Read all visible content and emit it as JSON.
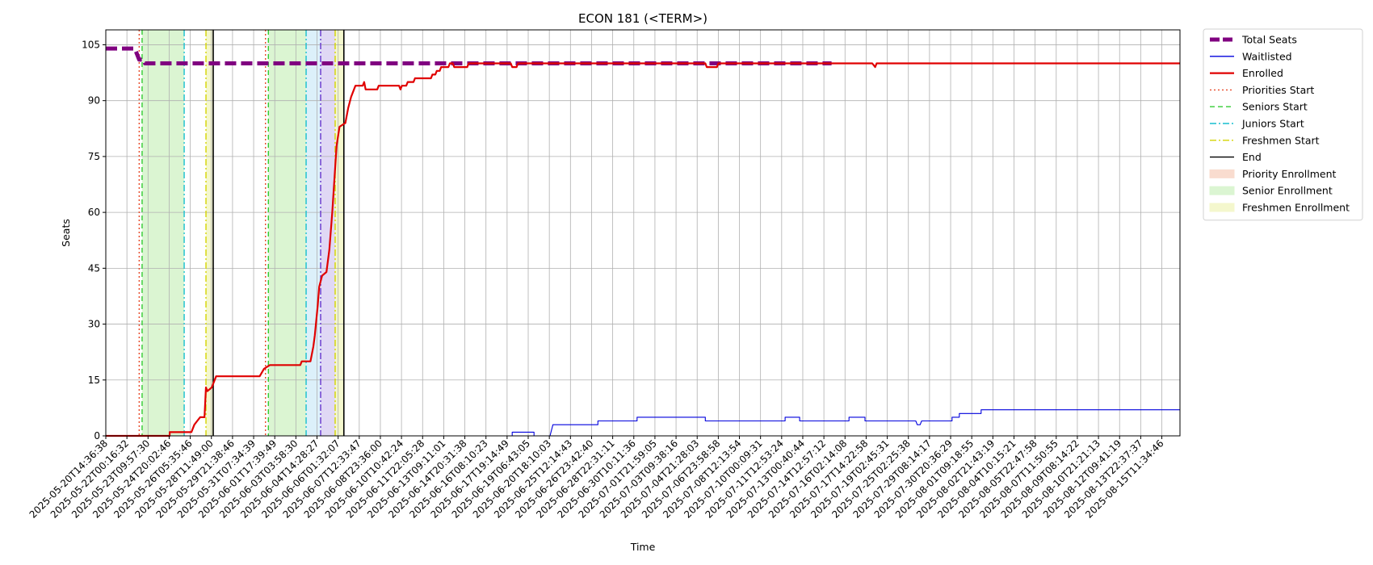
{
  "chart_data": {
    "type": "line",
    "title": "ECON 181 (<TERM>)",
    "xlabel": "Time",
    "ylabel": "Seats",
    "ylim": [
      0,
      109
    ],
    "yticks": [
      0,
      15,
      30,
      45,
      60,
      75,
      90,
      105
    ],
    "xlim": [
      "2025-05-20T14:36:38",
      "2025-08-16T10:00:00"
    ],
    "xticks": [
      "2025-05-20T14:36:38",
      "2025-05-22T00:16:32",
      "2025-05-23T09:57:30",
      "2025-05-24T20:02:46",
      "2025-05-26T05:35:46",
      "2025-05-28T11:49:00",
      "2025-05-29T21:38:46",
      "2025-05-31T07:34:39",
      "2025-06-01T17:39:49",
      "2025-06-03T03:58:30",
      "2025-06-04T14:28:27",
      "2025-06-06T01:32:07",
      "2025-06-07T12:33:47",
      "2025-06-08T23:36:00",
      "2025-06-10T10:42:24",
      "2025-06-11T22:05:28",
      "2025-06-13T09:11:01",
      "2025-06-14T20:31:38",
      "2025-06-16T08:10:23",
      "2025-06-17T19:14:49",
      "2025-06-19T06:43:05",
      "2025-06-20T18:10:03",
      "2025-06-25T12:14:43",
      "2025-06-26T23:42:40",
      "2025-06-28T22:31:11",
      "2025-06-30T10:11:36",
      "2025-07-01T21:59:05",
      "2025-07-03T09:38:16",
      "2025-07-04T21:28:03",
      "2025-07-06T23:58:58",
      "2025-07-08T12:13:54",
      "2025-07-10T00:09:31",
      "2025-07-11T12:53:24",
      "2025-07-13T00:40:44",
      "2025-07-14T12:57:12",
      "2025-07-16T02:14:08",
      "2025-07-17T14:22:58",
      "2025-07-19T02:45:31",
      "2025-07-25T02:25:38",
      "2025-07-29T08:14:17",
      "2025-07-30T20:36:29",
      "2025-08-01T09:18:55",
      "2025-08-02T21:43:19",
      "2025-08-04T10:15:21",
      "2025-08-05T22:47:58",
      "2025-08-07T11:50:55",
      "2025-08-09T08:14:22",
      "2025-08-10T21:21:13",
      "2025-08-12T09:41:19",
      "2025-08-13T22:37:37",
      "2025-08-15T11:34:46"
    ],
    "legend_position": "outside-right",
    "grid": true,
    "series": [
      {
        "name": "Total Seats",
        "color": "#800080",
        "style": "dashed",
        "points": [
          [
            0,
            104
          ],
          [
            2,
            104
          ],
          [
            2.3,
            101
          ],
          [
            2.6,
            101
          ],
          [
            2.7,
            100
          ],
          [
            50,
            100
          ]
        ]
      },
      {
        "name": "Waitlisted",
        "color": "#0000dd",
        "style": "solid",
        "points": [
          [
            0,
            0
          ],
          [
            28,
            0
          ],
          [
            28,
            1
          ],
          [
            29.5,
            1
          ],
          [
            29.5,
            0
          ],
          [
            30.6,
            0
          ],
          [
            30.8,
            3
          ],
          [
            33.9,
            3
          ],
          [
            33.9,
            4
          ],
          [
            36.6,
            4
          ],
          [
            36.6,
            5
          ],
          [
            41.3,
            5
          ],
          [
            41.3,
            4
          ],
          [
            46.8,
            4
          ],
          [
            46.8,
            5
          ],
          [
            47.8,
            5
          ],
          [
            47.8,
            4
          ],
          [
            51.2,
            4
          ],
          [
            51.2,
            5
          ],
          [
            52.3,
            5
          ],
          [
            52.3,
            4
          ],
          [
            55.8,
            4
          ],
          [
            55.9,
            3
          ],
          [
            56.1,
            3
          ],
          [
            56.2,
            4
          ],
          [
            58.3,
            4
          ],
          [
            58.3,
            5
          ],
          [
            58.8,
            5
          ],
          [
            58.8,
            6
          ],
          [
            60.3,
            6
          ],
          [
            60.3,
            7
          ],
          [
            74.0,
            7
          ]
        ]
      },
      {
        "name": "Enrolled",
        "color": "#e00000",
        "style": "solid",
        "points": [
          [
            0,
            0
          ],
          [
            4.4,
            0
          ],
          [
            4.4,
            1
          ],
          [
            5.9,
            1
          ],
          [
            6.0,
            2
          ],
          [
            6.1,
            3
          ],
          [
            6.3,
            4
          ],
          [
            6.5,
            5
          ],
          [
            6.8,
            5
          ],
          [
            6.9,
            13
          ],
          [
            7.0,
            12
          ],
          [
            7.3,
            13
          ],
          [
            7.5,
            15
          ],
          [
            7.6,
            16
          ],
          [
            10.6,
            16
          ],
          [
            10.9,
            18
          ],
          [
            11.3,
            19
          ],
          [
            13.4,
            19
          ],
          [
            13.5,
            20
          ],
          [
            14.1,
            20
          ],
          [
            14.3,
            24
          ],
          [
            14.4,
            27
          ],
          [
            14.6,
            35
          ],
          [
            14.7,
            40
          ],
          [
            14.9,
            43
          ],
          [
            15.2,
            44
          ],
          [
            15.4,
            50
          ],
          [
            15.6,
            60
          ],
          [
            15.8,
            72
          ],
          [
            15.9,
            78
          ],
          [
            16.1,
            83
          ],
          [
            16.5,
            84
          ],
          [
            16.7,
            88
          ],
          [
            16.9,
            91
          ],
          [
            17.1,
            93
          ],
          [
            17.2,
            94
          ],
          [
            17.7,
            94
          ],
          [
            17.8,
            95
          ],
          [
            17.9,
            93
          ],
          [
            18.7,
            93
          ],
          [
            18.8,
            94
          ],
          [
            20.2,
            94
          ],
          [
            20.3,
            93
          ],
          [
            20.4,
            94
          ],
          [
            20.7,
            94
          ],
          [
            20.8,
            95
          ],
          [
            21.2,
            95
          ],
          [
            21.3,
            96
          ],
          [
            22.4,
            96
          ],
          [
            22.5,
            97
          ],
          [
            22.7,
            97
          ],
          [
            22.8,
            98
          ],
          [
            23.0,
            98
          ],
          [
            23.1,
            99
          ],
          [
            23.6,
            99
          ],
          [
            23.7,
            100
          ],
          [
            23.9,
            100
          ],
          [
            24.0,
            99
          ],
          [
            24.9,
            99
          ],
          [
            25.0,
            100
          ],
          [
            27.9,
            100
          ],
          [
            28.0,
            99
          ],
          [
            28.3,
            99
          ],
          [
            28.4,
            100
          ],
          [
            41.3,
            100
          ],
          [
            41.4,
            99
          ],
          [
            42.1,
            99
          ],
          [
            42.2,
            100
          ],
          [
            52.8,
            100
          ],
          [
            53.0,
            99
          ],
          [
            53.1,
            100
          ],
          [
            74.0,
            100
          ]
        ]
      }
    ],
    "vlines": [
      {
        "name": "Priorities Start",
        "color": "#e84a2a",
        "style": "dotted",
        "at": [
          2.3,
          11.0
        ]
      },
      {
        "name": "Seniors Start",
        "color": "#33cc33",
        "style": "dashed",
        "at": [
          2.5,
          11.2
        ]
      },
      {
        "name": "Juniors Start",
        "color": "#17becf",
        "style": "dashdot",
        "at": [
          5.4,
          13.8
        ]
      },
      {
        "name": "Freshmen Start",
        "color": "#d4d400",
        "style": "dashdot",
        "at": [
          6.9,
          15.8
        ]
      },
      {
        "name": "End",
        "color": "#000000",
        "style": "solid",
        "at": [
          7.4,
          16.4
        ]
      }
    ],
    "spans": [
      {
        "name": "Senior Enrollment",
        "color": "#dbf5d2",
        "from": 2.5,
        "to": 5.4
      },
      {
        "name": "Senior Enrollment",
        "color": "#dbf5d2",
        "from": 11.2,
        "to": 13.8
      },
      {
        "name": "Freshmen Enrollment",
        "color": "#f4f7cd",
        "from": 6.9,
        "to": 7.4
      },
      {
        "name": "",
        "color": "#dcf0fa",
        "from": 13.8,
        "to": 14.8
      },
      {
        "name": "",
        "color": "#e0d8f5",
        "from": 14.8,
        "to": 15.8
      },
      {
        "name": "Freshmen Enrollment",
        "color": "#f4f7cd",
        "from": 15.8,
        "to": 16.4
      }
    ],
    "extra_vlines": [
      {
        "color": "#6633cc",
        "style": "dashdot",
        "at": 14.8
      }
    ],
    "legend": [
      {
        "label": "Total Seats",
        "kind": "thick-dash",
        "color": "#800080"
      },
      {
        "label": "Waitlisted",
        "kind": "line",
        "color": "#0000dd"
      },
      {
        "label": "Enrolled",
        "kind": "thick-line",
        "color": "#e00000"
      },
      {
        "label": "Priorities Start",
        "kind": "dotted",
        "color": "#e84a2a"
      },
      {
        "label": "Seniors Start",
        "kind": "dashed",
        "color": "#33cc33"
      },
      {
        "label": "Juniors Start",
        "kind": "dashdot",
        "color": "#17becf"
      },
      {
        "label": "Freshmen Start",
        "kind": "dashdot",
        "color": "#d4d400"
      },
      {
        "label": "End",
        "kind": "line",
        "color": "#000000"
      },
      {
        "label": "Priority Enrollment",
        "kind": "patch",
        "color": "#f9dccf"
      },
      {
        "label": "Senior Enrollment",
        "kind": "patch",
        "color": "#dbf5d2"
      },
      {
        "label": "Freshmen Enrollment",
        "kind": "patch",
        "color": "#f4f7cd"
      }
    ]
  }
}
